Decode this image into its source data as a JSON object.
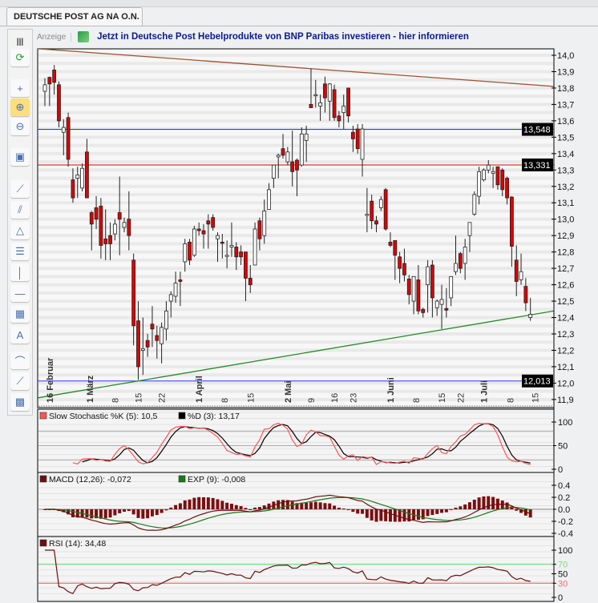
{
  "tab": {
    "label": "DEUTSCHE POST AG NA O.N."
  },
  "ad": {
    "label": "Anzeige",
    "text": "Jetzt in Deutsche Post Hebelprodukte von BNP Paribas investieren - hier informieren"
  },
  "toolbar": {
    "items": [
      {
        "icon": "columns-icon",
        "glyph": "|||"
      },
      {
        "icon": "refresh-icon",
        "glyph": "⟳"
      },
      {
        "icon": "crosshair-icon",
        "glyph": "+"
      },
      {
        "icon": "zoom-in-icon",
        "glyph": "⊕",
        "active": true
      },
      {
        "icon": "zoom-out-icon",
        "glyph": "⊖"
      },
      {
        "icon": "screen-settings-icon",
        "glyph": "▣"
      },
      {
        "icon": "trendline-icon",
        "glyph": "⟋"
      },
      {
        "icon": "channel-icon",
        "glyph": "⫽"
      },
      {
        "icon": "triangle-icon",
        "glyph": "△"
      },
      {
        "icon": "fibonacci-icon",
        "glyph": "☰"
      },
      {
        "icon": "vertical-line-icon",
        "glyph": "│"
      },
      {
        "icon": "horizontal-line-icon",
        "glyph": "—"
      },
      {
        "icon": "rectangle-add-icon",
        "glyph": "▦"
      },
      {
        "icon": "text-icon",
        "glyph": "A"
      },
      {
        "icon": "arc-icon",
        "glyph": "⌒"
      },
      {
        "icon": "ray-icon",
        "glyph": "⟋"
      },
      {
        "icon": "color-palette-icon",
        "glyph": "▩"
      }
    ]
  },
  "colors": {
    "up": "#ffffff",
    "down": "#dd0000",
    "resistance": "#a0522d",
    "support": "#228b22",
    "hline_blue": "#3333ff",
    "hline_red": "#dd0000",
    "stoch_k": "#ff5555",
    "stoch_d": "#000000",
    "macd": "#6b0f0f",
    "signal": "#1a7a1a",
    "rsi": "#6b0f0f"
  },
  "chart_data": [
    {
      "type": "candlestick",
      "ylim": [
        11.9,
        14.0
      ],
      "yticks": [
        "14,0",
        "13,9",
        "13,8",
        "13,7",
        "13,6",
        "13,5",
        "13,4",
        "13,3",
        "13,2",
        "13,1",
        "13,0",
        "12,9",
        "12,8",
        "12,7",
        "12,6",
        "12,5",
        "12,4",
        "12,3",
        "12,2",
        "12,1",
        "12,0",
        "11,9"
      ],
      "ytick_values": [
        14.0,
        13.9,
        13.8,
        13.7,
        13.6,
        13.5,
        13.4,
        13.3,
        13.2,
        13.1,
        13.0,
        12.9,
        12.8,
        12.7,
        12.6,
        12.5,
        12.4,
        12.3,
        12.2,
        12.1,
        12.0,
        11.9
      ],
      "xticks": [
        {
          "label": "16 Februar",
          "at_candle": 1,
          "bold": true
        },
        {
          "label": "1 März",
          "at_candle": 9.6,
          "bold": true
        },
        {
          "label": "8",
          "at_candle": 15
        },
        {
          "label": "15",
          "at_candle": 20
        },
        {
          "label": "22",
          "at_candle": 25
        },
        {
          "label": "1 April",
          "at_candle": 33,
          "bold": true
        },
        {
          "label": "8",
          "at_candle": 38.5
        },
        {
          "label": "15",
          "at_candle": 44
        },
        {
          "label": "2 Mai",
          "at_candle": 52,
          "bold": true
        },
        {
          "label": "9",
          "at_candle": 57
        },
        {
          "label": "16",
          "at_candle": 62
        },
        {
          "label": "23",
          "at_candle": 66
        },
        {
          "label": "1 Juni",
          "at_candle": 74,
          "bold": true
        },
        {
          "label": "8",
          "at_candle": 79.5
        },
        {
          "label": "15",
          "at_candle": 85
        },
        {
          "label": "22",
          "at_candle": 89
        },
        {
          "label": "1 Juli",
          "at_candle": 94,
          "bold": true
        },
        {
          "label": "8",
          "at_candle": 99.7
        },
        {
          "label": "15",
          "at_candle": 105
        }
      ],
      "hlines": [
        {
          "value": 13.548,
          "label": "13,548",
          "color": "#3333ff"
        },
        {
          "value": 13.331,
          "label": "13,331",
          "color": "#dd0000"
        },
        {
          "value": 12.013,
          "label": "12,013",
          "color": "#3333ff"
        }
      ],
      "trendlines": [
        {
          "name": "resistance",
          "from": [
            -1.5,
            14.04
          ],
          "to": [
            109,
            13.81
          ],
          "color": "#a0522d"
        },
        {
          "name": "support",
          "from": [
            -1.5,
            11.91
          ],
          "to": [
            109,
            12.44
          ],
          "color": "#228b22"
        }
      ],
      "ohlc": [
        [
          13.78,
          13.86,
          13.69,
          13.82
        ],
        [
          13.865,
          13.87,
          13.69,
          13.825
        ],
        [
          13.91,
          13.94,
          13.76,
          13.835
        ],
        [
          13.82,
          13.84,
          13.56,
          13.6
        ],
        [
          13.53,
          13.61,
          13.39,
          13.56
        ],
        [
          13.62,
          13.65,
          13.32,
          13.365
        ],
        [
          13.24,
          13.31,
          13.1,
          13.13
        ],
        [
          13.25,
          13.32,
          13.13,
          13.27
        ],
        [
          13.19,
          13.34,
          13.17,
          13.31
        ],
        [
          13.41,
          13.49,
          13.13,
          13.13
        ],
        [
          13.04,
          13.05,
          12.81,
          12.97
        ],
        [
          13.07,
          13.14,
          12.94,
          13.0
        ],
        [
          13.08,
          13.13,
          12.76,
          12.84
        ],
        [
          12.88,
          13.06,
          12.75,
          12.85
        ],
        [
          12.9,
          12.98,
          12.75,
          12.85
        ],
        [
          12.91,
          13.0,
          12.87,
          12.97
        ],
        [
          13.04,
          13.26,
          12.78,
          13.0
        ],
        [
          12.95,
          13.01,
          12.92,
          12.98
        ],
        [
          13.0,
          13.17,
          12.81,
          12.9
        ],
        [
          12.75,
          12.79,
          12.23,
          12.35
        ],
        [
          12.38,
          12.5,
          12.02,
          12.1
        ],
        [
          12.2,
          12.4,
          12.05,
          12.21
        ],
        [
          12.26,
          12.3,
          12.16,
          12.22
        ],
        [
          12.36,
          12.47,
          12.22,
          12.33
        ],
        [
          12.29,
          12.35,
          12.15,
          12.26
        ],
        [
          12.24,
          12.37,
          12.12,
          12.34
        ],
        [
          12.33,
          12.5,
          12.26,
          12.44
        ],
        [
          12.5,
          12.56,
          12.4,
          12.54
        ],
        [
          12.53,
          12.68,
          12.49,
          12.61
        ],
        [
          12.63,
          12.68,
          12.47,
          12.62
        ],
        [
          12.74,
          12.88,
          12.68,
          12.85
        ],
        [
          12.86,
          12.88,
          12.72,
          12.75
        ],
        [
          12.78,
          12.96,
          12.77,
          12.94
        ],
        [
          12.94,
          12.98,
          12.9,
          12.93
        ],
        [
          12.93,
          12.97,
          12.82,
          12.91
        ],
        [
          12.99,
          13.03,
          12.82,
          12.97
        ],
        [
          13.01,
          13.03,
          12.93,
          12.95
        ],
        [
          12.88,
          12.92,
          12.74,
          12.9
        ],
        [
          12.86,
          12.91,
          12.76,
          12.855
        ],
        [
          12.78,
          12.87,
          12.7,
          12.78
        ],
        [
          12.83,
          12.98,
          12.77,
          12.84
        ],
        [
          12.83,
          12.86,
          12.69,
          12.77
        ],
        [
          12.8,
          12.84,
          12.72,
          12.77
        ],
        [
          12.8,
          12.8,
          12.5,
          12.64
        ],
        [
          12.64,
          12.72,
          12.55,
          12.6
        ],
        [
          12.72,
          12.98,
          12.72,
          12.94
        ],
        [
          12.99,
          13.01,
          12.81,
          12.88
        ],
        [
          12.9,
          13.12,
          12.85,
          13.05
        ],
        [
          13.06,
          13.22,
          13.06,
          13.18
        ],
        [
          13.25,
          13.33,
          13.19,
          13.33
        ],
        [
          13.38,
          13.4,
          13.25,
          13.39
        ],
        [
          13.43,
          13.52,
          13.37,
          13.39
        ],
        [
          13.35,
          13.44,
          13.33,
          13.41
        ],
        [
          13.35,
          13.54,
          13.2,
          13.29
        ],
        [
          13.36,
          13.37,
          13.14,
          13.3
        ],
        [
          13.33,
          13.56,
          13.32,
          13.52
        ],
        [
          13.48,
          13.57,
          13.35,
          13.52
        ],
        [
          13.7,
          13.92,
          13.68,
          13.68
        ],
        [
          13.76,
          13.85,
          13.68,
          13.76
        ],
        [
          13.69,
          13.76,
          13.6,
          13.71
        ],
        [
          13.825,
          13.87,
          13.65,
          13.74
        ],
        [
          13.72,
          13.83,
          13.6,
          13.825
        ],
        [
          13.79,
          13.82,
          13.6,
          13.62
        ],
        [
          13.63,
          13.66,
          13.56,
          13.6
        ],
        [
          13.65,
          13.76,
          13.55,
          13.69
        ],
        [
          13.8,
          13.8,
          13.59,
          13.63
        ],
        [
          13.53,
          13.57,
          13.41,
          13.49
        ],
        [
          13.55,
          13.58,
          13.4,
          13.43
        ],
        [
          13.365,
          13.58,
          13.26,
          13.55
        ],
        [
          13.03,
          13.19,
          12.92,
          13.03
        ],
        [
          13.11,
          13.15,
          12.94,
          12.99
        ],
        [
          12.99,
          13.02,
          12.92,
          12.97
        ],
        [
          13.07,
          13.14,
          13.05,
          13.12
        ],
        [
          13.18,
          13.19,
          12.93,
          12.94
        ],
        [
          12.86,
          12.92,
          12.83,
          12.84
        ],
        [
          12.87,
          12.87,
          12.63,
          12.78
        ],
        [
          12.77,
          12.8,
          12.61,
          12.7
        ],
        [
          12.73,
          12.82,
          12.62,
          12.66
        ],
        [
          12.635,
          12.66,
          12.48,
          12.54
        ],
        [
          12.5,
          12.65,
          12.42,
          12.65
        ],
        [
          12.63,
          12.72,
          12.42,
          12.44
        ],
        [
          12.45,
          12.46,
          12.4,
          12.43
        ],
        [
          12.6,
          12.75,
          12.43,
          12.71
        ],
        [
          12.72,
          12.75,
          12.4,
          12.52
        ],
        [
          12.46,
          12.51,
          12.41,
          12.5
        ],
        [
          12.48,
          12.6,
          12.33,
          12.51
        ],
        [
          12.455,
          12.58,
          12.4,
          12.445
        ],
        [
          12.52,
          12.65,
          12.47,
          12.65
        ],
        [
          12.68,
          12.9,
          12.66,
          12.73
        ],
        [
          12.79,
          12.8,
          12.67,
          12.7
        ],
        [
          12.73,
          12.88,
          12.63,
          12.83
        ],
        [
          12.9,
          12.98,
          12.8,
          12.98
        ],
        [
          13.03,
          13.17,
          13.02,
          13.15
        ],
        [
          13.14,
          13.32,
          13.09,
          13.29
        ],
        [
          13.24,
          13.31,
          13.23,
          13.3
        ],
        [
          13.3,
          13.36,
          13.28,
          13.33
        ],
        [
          13.28,
          13.32,
          13.19,
          13.29
        ],
        [
          13.32,
          13.32,
          13.18,
          13.21
        ],
        [
          13.3,
          13.31,
          13.14,
          13.18
        ],
        [
          13.25,
          13.26,
          13.09,
          13.13
        ],
        [
          13.135,
          13.14,
          12.71,
          12.835
        ],
        [
          12.75,
          12.84,
          12.53,
          12.62
        ],
        [
          12.63,
          12.79,
          12.6,
          12.68
        ],
        [
          12.59,
          12.64,
          12.44,
          12.49
        ],
        [
          12.4,
          12.52,
          12.38,
          12.42
        ]
      ]
    },
    {
      "type": "line",
      "name": "stochastic",
      "legend": [
        {
          "label": "Slow Stochastic %K (5): 10,5",
          "color": "#ff5555"
        },
        {
          "label": "%D (3): 13,17",
          "color": "#000000"
        }
      ],
      "ylim": [
        0,
        100
      ],
      "yticks": [
        "100",
        "50",
        "0"
      ],
      "ytick_values": [
        100,
        50,
        0
      ],
      "gridlines": [
        80,
        50,
        20
      ]
    },
    {
      "type": "line",
      "name": "macd",
      "legend": [
        {
          "label": "MACD (12,26): -0,072",
          "color": "#6b0f0f"
        },
        {
          "label": "EXP (9): -0,008",
          "color": "#1a7a1a"
        }
      ],
      "ylim": [
        -0.45,
        0.45
      ],
      "yticks": [
        "0.4",
        "0.2",
        "0.0",
        "-0.2",
        "-0.4"
      ],
      "ytick_values": [
        0.4,
        0.2,
        0,
        -0.2,
        -0.4
      ]
    },
    {
      "type": "line",
      "name": "rsi",
      "legend": [
        {
          "label": "RSI (14): 34,48",
          "color": "#6b0f0f"
        }
      ],
      "ylim": [
        0,
        100
      ],
      "yticks": [
        "100",
        "70",
        "50",
        "30",
        "0"
      ],
      "ytick_values": [
        100,
        70,
        50,
        30,
        0
      ],
      "overbought": 70,
      "oversold": 30
    }
  ]
}
